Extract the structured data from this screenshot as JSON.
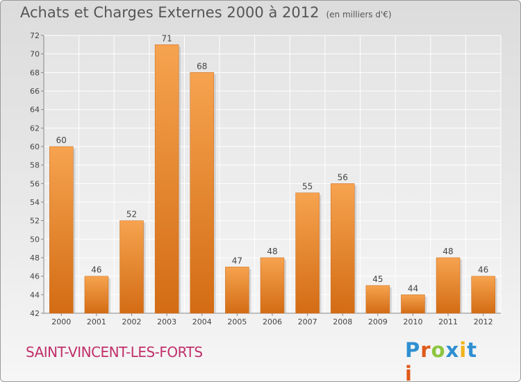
{
  "header": {
    "title": "Achats et Charges Externes 2000 à 2012",
    "unit": "(en milliers d'€)"
  },
  "footer": {
    "commune": "SAINT-VINCENT-LES-FORTS",
    "logo_text": "Proxiti"
  },
  "colors": {
    "bar_light": "#f6a34f",
    "bar_dark": "#d36c14",
    "title": "#555555",
    "commune": "#c0306a"
  },
  "chart_data": {
    "type": "bar",
    "categories": [
      "2000",
      "2001",
      "2002",
      "2003",
      "2004",
      "2005",
      "2006",
      "2007",
      "2008",
      "2009",
      "2010",
      "2011",
      "2012"
    ],
    "values": [
      60,
      46,
      52,
      71,
      68,
      47,
      48,
      55,
      56,
      45,
      44,
      48,
      46
    ],
    "title": "Achats et Charges Externes 2000 à 2012",
    "subtitle": "(en milliers d'€)",
    "xlabel": "",
    "ylabel": "",
    "ylim": [
      42,
      72
    ],
    "yticks": [
      42,
      44,
      46,
      48,
      50,
      52,
      54,
      56,
      58,
      60,
      62,
      64,
      66,
      68,
      70,
      72
    ],
    "grid": true,
    "data_labels": true
  }
}
